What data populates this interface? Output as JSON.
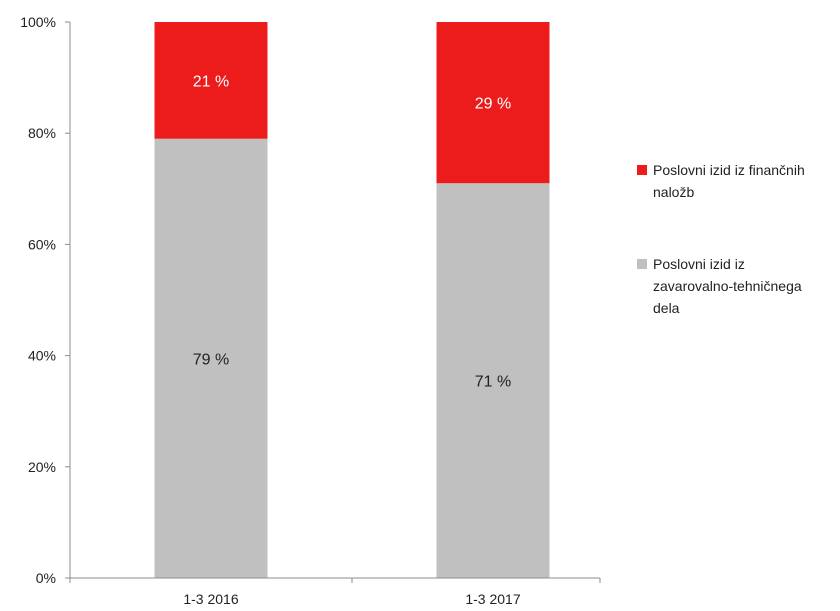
{
  "chart_data": {
    "type": "bar",
    "stacked": true,
    "percent_stacked": true,
    "categories": [
      "1-3 2016",
      "1-3 2017"
    ],
    "series": [
      {
        "name": "Poslovni izid iz zavarovalno-tehničnega dela",
        "legend_lines": [
          "Poslovni izid iz",
          "zavarovalno-tehničnega",
          "dela"
        ],
        "values": [
          79,
          71
        ],
        "data_labels": [
          "79 %",
          "71 %"
        ],
        "color": "#c0c0c0",
        "label_color": "#222222"
      },
      {
        "name": "Poslovni izid iz finančnih naložb",
        "legend_lines": [
          "Poslovni izid iz finančnih",
          "naložb"
        ],
        "values": [
          21,
          29
        ],
        "data_labels": [
          "21 %",
          "29 %"
        ],
        "color": "#ed1c1c",
        "label_color": "#ffffff"
      }
    ],
    "ylim": [
      0,
      100
    ],
    "yticks": [
      0,
      20,
      40,
      60,
      80,
      100
    ],
    "ytick_labels": [
      "0%",
      "20%",
      "40%",
      "60%",
      "80%",
      "100%"
    ],
    "grid": false,
    "legend_position": "right"
  }
}
